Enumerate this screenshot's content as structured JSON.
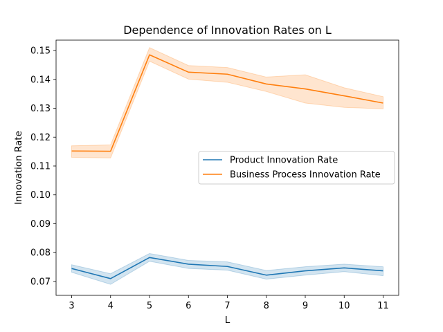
{
  "chart_data": {
    "type": "line",
    "title": "Dependence of Innovation Rates on L",
    "xlabel": "L",
    "ylabel": "Innovation Rate",
    "x": [
      3,
      4,
      5,
      6,
      7,
      8,
      9,
      10,
      11
    ],
    "xlim": [
      2.6,
      11.4
    ],
    "ylim": [
      0.0652,
      0.1536
    ],
    "xticks": [
      "3",
      "4",
      "5",
      "6",
      "7",
      "8",
      "9",
      "10",
      "11"
    ],
    "yticks": [
      "0.07",
      "0.08",
      "0.09",
      "0.10",
      "0.11",
      "0.12",
      "0.13",
      "0.14",
      "0.15"
    ],
    "grid": false,
    "legend_position": "center-right",
    "series": [
      {
        "name": "Product Innovation Rate",
        "color": "#1f77b4",
        "values": [
          0.0745,
          0.071,
          0.0783,
          0.076,
          0.0752,
          0.0722,
          0.0737,
          0.0747,
          0.0737
        ],
        "lower": [
          0.0732,
          0.069,
          0.077,
          0.0745,
          0.0739,
          0.0708,
          0.0722,
          0.0734,
          0.072
        ],
        "upper": [
          0.0758,
          0.0727,
          0.0797,
          0.0773,
          0.0768,
          0.0738,
          0.0751,
          0.076,
          0.0751
        ]
      },
      {
        "name": "Business Process Innovation Rate",
        "color": "#ff7f0e",
        "values": [
          0.1152,
          0.1151,
          0.1485,
          0.1425,
          0.1418,
          0.1384,
          0.1367,
          0.1343,
          0.1318
        ],
        "lower": [
          0.113,
          0.1128,
          0.1463,
          0.1401,
          0.139,
          0.1358,
          0.1318,
          0.1303,
          0.1298
        ],
        "upper": [
          0.117,
          0.1173,
          0.151,
          0.1448,
          0.1441,
          0.1408,
          0.1416,
          0.1371,
          0.134
        ]
      }
    ]
  }
}
